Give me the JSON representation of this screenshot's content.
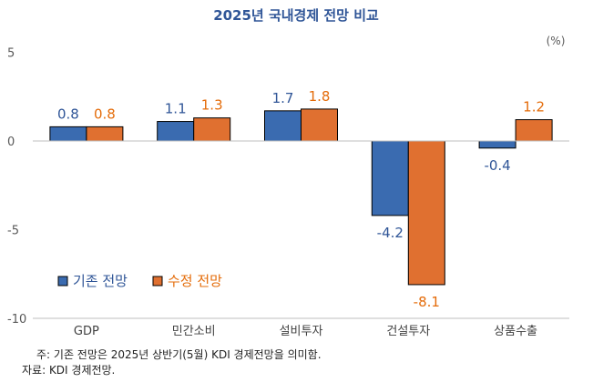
{
  "chart_data": {
    "type": "bar",
    "title": "2025년 국내경제 전망 비교",
    "unit": "(%)",
    "categories": [
      "GDP",
      "민간소비",
      "설비투자",
      "건설투자",
      "상품수출"
    ],
    "series": [
      {
        "name": "기존 전망",
        "values": [
          0.8,
          1.1,
          1.7,
          -4.2,
          -0.4
        ],
        "labels": [
          "0.8",
          "1.1",
          "1.7",
          "-4.2",
          "-0.4"
        ],
        "color": "#3a6bb0",
        "label_color": "#2f5597"
      },
      {
        "name": "수정 전망",
        "values": [
          0.8,
          1.3,
          1.8,
          -8.1,
          1.2
        ],
        "labels": [
          "0.8",
          "1.3",
          "1.8",
          "-8.1",
          "1.2"
        ],
        "color": "#e07030",
        "label_color": "#e46c0a"
      }
    ],
    "ylim": [
      -10,
      5
    ],
    "yticks": [
      5,
      0,
      -5,
      -10
    ],
    "ytick_labels": [
      "5",
      "0",
      "-5",
      "-10"
    ],
    "grid": false,
    "legend": "bottom-left",
    "notes": [
      "주: 기존 전망은 2025년 상반기(5월) KDI 경제전망을 의미함.",
      "자료: KDI 경제전망."
    ]
  },
  "colors": {
    "title": "#2f5597",
    "axis": "#bfbfbf",
    "bar_border": "#000000"
  }
}
